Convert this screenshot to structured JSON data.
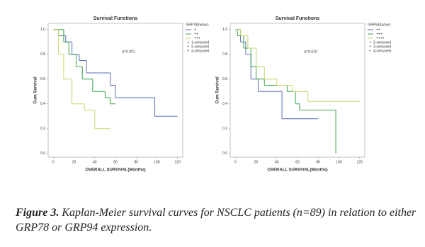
{
  "chart_data": [
    {
      "type": "line",
      "title": "Survival Functions",
      "x_label": "OVERALL SURVIVAL(Months)",
      "y_label": "Cum Survival",
      "annotation": "p=0.001",
      "legend_title": "GRP78(tumor)",
      "censored_labels": [
        "1-censored",
        "2-censored",
        "3-censored"
      ],
      "xlim": [
        -5,
        125
      ],
      "ylim": [
        -0.03,
        1.05
      ],
      "xticks": [
        0,
        20,
        40,
        60,
        80,
        100,
        120
      ],
      "yticks": [
        {
          "value": 0,
          "label": "0.0"
        },
        {
          "value": 0.2,
          "label": "0.2"
        },
        {
          "value": 0.4,
          "label": "0.4"
        },
        {
          "value": 0.6,
          "label": "0.6"
        },
        {
          "value": 0.8,
          "label": "0.8"
        },
        {
          "value": 1,
          "label": "1.0"
        }
      ],
      "series": [
        {
          "name": "+",
          "color": "#5b6fb8",
          "x": [
            0,
            5,
            12,
            18,
            25,
            32,
            55,
            60,
            98,
            120
          ],
          "values": [
            1,
            0.95,
            0.9,
            0.8,
            0.75,
            0.65,
            0.55,
            0.45,
            0.3,
            0.3
          ]
        },
        {
          "name": "++",
          "color": "#3aa04a",
          "x": [
            0,
            10,
            15,
            22,
            28,
            38,
            50,
            55,
            60
          ],
          "values": [
            1,
            0.9,
            0.8,
            0.7,
            0.6,
            0.5,
            0.45,
            0.4,
            0.4
          ]
        },
        {
          "name": "+++",
          "color": "#c8d66a",
          "x": [
            0,
            5,
            10,
            18,
            30,
            40,
            55
          ],
          "values": [
            1,
            0.8,
            0.6,
            0.4,
            0.35,
            0.2,
            0.2
          ]
        }
      ]
    },
    {
      "type": "line",
      "title": "Survival Functions",
      "x_label": "OVERALL SURVIVAL(Months)",
      "y_label": "Cum Survival",
      "annotation": "p=0.610",
      "legend_title": "GRP94(tumor)",
      "censored_labels": [
        "2-censored",
        "3-censored",
        "4-censored"
      ],
      "xlim": [
        -5,
        125
      ],
      "ylim": [
        -0.03,
        1.05
      ],
      "xticks": [
        0,
        20,
        40,
        60,
        80,
        100,
        120
      ],
      "yticks": [
        {
          "value": 0,
          "label": "0.0"
        },
        {
          "value": 0.2,
          "label": "0.2"
        },
        {
          "value": 0.4,
          "label": "0.4"
        },
        {
          "value": 0.6,
          "label": "0.6"
        },
        {
          "value": 0.8,
          "label": "0.8"
        },
        {
          "value": 1,
          "label": "1.0"
        }
      ],
      "series": [
        {
          "name": "++",
          "color": "#5b6fb8",
          "x": [
            0,
            5,
            10,
            15,
            22,
            45,
            80
          ],
          "values": [
            1,
            0.9,
            0.8,
            0.6,
            0.5,
            0.28,
            0.28
          ]
        },
        {
          "name": "+++",
          "color": "#3aa04a",
          "x": [
            0,
            2,
            8,
            15,
            20,
            28,
            50,
            58,
            62,
            97,
            97
          ],
          "values": [
            1,
            0.95,
            0.85,
            0.7,
            0.6,
            0.55,
            0.5,
            0.4,
            0.35,
            0,
            0
          ]
        },
        {
          "name": "++++",
          "color": "#c8d66a",
          "x": [
            0,
            5,
            12,
            20,
            28,
            40,
            55,
            70,
            120
          ],
          "values": [
            1,
            0.95,
            0.85,
            0.7,
            0.6,
            0.55,
            0.5,
            0.42,
            0.42
          ]
        }
      ]
    }
  ],
  "caption": {
    "label": "Figure 3.",
    "text": "Kaplan-Meier survival curves for NSCLC patients (n=89) in relation to either GRP78 or GRP94 expression."
  }
}
